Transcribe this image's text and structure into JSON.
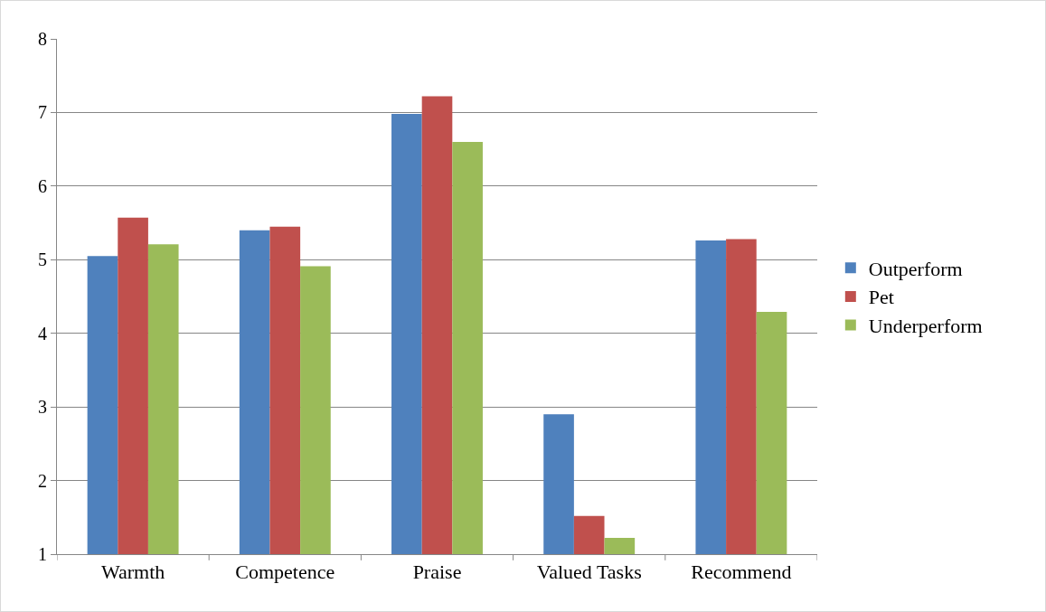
{
  "chart_data": {
    "type": "bar",
    "categories": [
      "Warmth",
      "Competence",
      "Praise",
      "Valued Tasks",
      "Recommend"
    ],
    "series": [
      {
        "name": "Outperform",
        "color": "#4f81bd",
        "values": [
          5.05,
          5.4,
          6.98,
          2.9,
          5.26
        ]
      },
      {
        "name": "Pet",
        "color": "#c0504d",
        "values": [
          5.57,
          5.45,
          7.22,
          1.52,
          5.28
        ]
      },
      {
        "name": "Underperform",
        "color": "#9bbb59",
        "values": [
          5.21,
          4.91,
          6.6,
          1.22,
          4.29
        ]
      }
    ],
    "ylim": [
      1,
      8
    ],
    "yticks": [
      1,
      2,
      3,
      4,
      5,
      6,
      7,
      8
    ],
    "grid": "y",
    "legend": "right"
  }
}
